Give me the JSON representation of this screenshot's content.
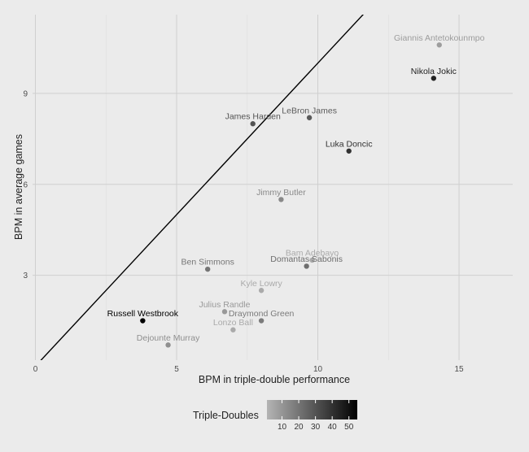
{
  "chart_data": {
    "type": "scatter",
    "title": "",
    "xlabel": "BPM in triple-double performance",
    "ylabel": "BPM in average games",
    "xlim": [
      -0.1,
      16.9
    ],
    "ylim": [
      0.2,
      11.6
    ],
    "xticks": [
      0,
      5,
      10,
      15
    ],
    "yticks": [
      3,
      6,
      9
    ],
    "grid": true,
    "reference_line": {
      "type": "identity",
      "slope": 1,
      "intercept": 0
    },
    "legend": {
      "title": "Triple-Doubles",
      "position": "bottom",
      "ticks": [
        10,
        20,
        30,
        40,
        50
      ],
      "range": [
        1,
        55
      ],
      "color_low": "#b4b4b4",
      "color_high": "#000000"
    },
    "points": [
      {
        "name": "Giannis Antetokounmpo",
        "x": 14.3,
        "y": 10.6,
        "triple_doubles": 8
      },
      {
        "name": "Nikola Jokic",
        "x": 14.1,
        "y": 9.5,
        "triple_doubles": 45
      },
      {
        "name": "LeBron James",
        "x": 9.7,
        "y": 8.2,
        "triple_doubles": 28
      },
      {
        "name": "James Harden",
        "x": 7.7,
        "y": 8.0,
        "triple_doubles": 30
      },
      {
        "name": "Luka Doncic",
        "x": 11.1,
        "y": 7.1,
        "triple_doubles": 40
      },
      {
        "name": "Jimmy Butler",
        "x": 8.7,
        "y": 5.5,
        "triple_doubles": 14
      },
      {
        "name": "Bam Adebayo",
        "x": 9.8,
        "y": 3.5,
        "triple_doubles": 4
      },
      {
        "name": "Domantas Sabonis",
        "x": 9.6,
        "y": 3.3,
        "triple_doubles": 22
      },
      {
        "name": "Ben Simmons",
        "x": 6.1,
        "y": 3.2,
        "triple_doubles": 20
      },
      {
        "name": "Kyle Lowry",
        "x": 8.0,
        "y": 2.5,
        "triple_doubles": 4
      },
      {
        "name": "Julius Randle",
        "x": 6.7,
        "y": 1.8,
        "triple_doubles": 9
      },
      {
        "name": "Draymond Green",
        "x": 8.0,
        "y": 1.5,
        "triple_doubles": 18
      },
      {
        "name": "Lonzo Ball",
        "x": 7.0,
        "y": 1.2,
        "triple_doubles": 4
      },
      {
        "name": "Russell Westbrook",
        "x": 3.8,
        "y": 1.5,
        "triple_doubles": 55
      },
      {
        "name": "Dejounte Murray",
        "x": 4.7,
        "y": 0.7,
        "triple_doubles": 12
      }
    ]
  }
}
